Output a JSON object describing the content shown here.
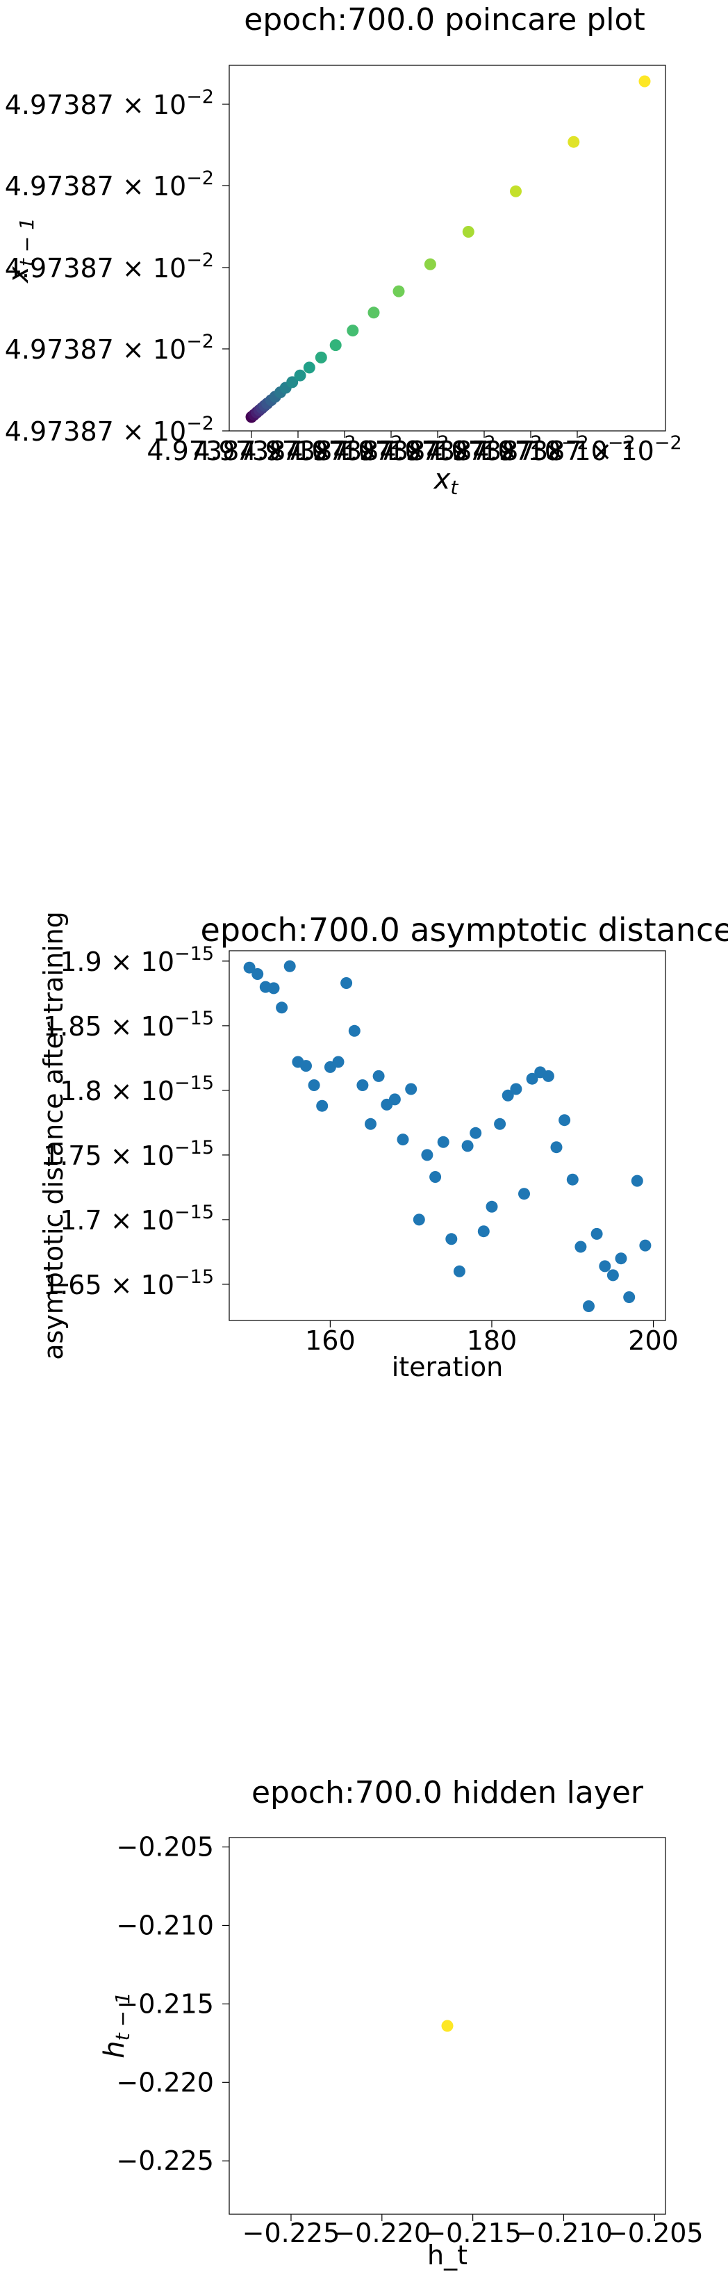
{
  "chart_data": [
    {
      "type": "scatter",
      "title": "epoch:700.0 poincare plot",
      "xlabel_base": "x",
      "xlabel_sub": "t",
      "ylabel_base": "x",
      "ylabel_sub": "t − 1",
      "ytick_labels": [
        "4.97387 × 10",
        "4.97387 × 10",
        "4.97387 × 10",
        "4.97387 × 10",
        "4.97387 × 10"
      ],
      "ytick_exp": "−2",
      "xtick_labels": [
        "4.97387 × 10",
        "4.97387 × 10",
        "4.97387 × 10",
        "4.97387 × 10",
        "4.97387 × 10",
        "4.97387 × 10",
        "4.97387 × 10",
        "4.97387 × 10"
      ],
      "xtick_exp": "−2",
      "colormap": "viridis",
      "x": [
        0.049738701,
        0.049738703,
        0.049738705,
        0.049738707,
        0.049738709,
        0.049738711,
        0.049738713,
        0.049738716,
        0.049738719,
        0.049738723,
        0.049738727,
        0.049738732,
        0.049738738,
        0.049738745,
        0.049738754,
        0.049738765,
        0.049738778,
        0.049738794,
        0.049738813,
        0.049738837,
        0.049738866,
        0.049738902,
        0.049738946,
        0.049739
      ],
      "y": [
        0.049738701,
        0.049738703,
        0.049738705,
        0.049738707,
        0.049738709,
        0.049738711,
        0.049738713,
        0.049738716,
        0.049738719,
        0.049738723,
        0.049738727,
        0.049738732,
        0.049738738,
        0.049738745,
        0.049738754,
        0.049738765,
        0.049738778,
        0.049738794,
        0.049738813,
        0.049738837,
        0.049738866,
        0.049738902,
        0.049738946,
        0.049739
      ]
    },
    {
      "type": "scatter",
      "title": "epoch:700.0 asymptotic distance",
      "xlabel": "iteration",
      "ylabel": "asymptotic distance after training",
      "color": "#1f77b4",
      "xticks": [
        160,
        180,
        200
      ],
      "yticks": [
        1.65,
        1.7,
        1.75,
        1.8,
        1.85,
        1.9
      ],
      "ytick_labels": [
        "1.65 × 10",
        "1.7 × 10",
        "1.75 × 10",
        "1.8 × 10",
        "1.85 × 10",
        "1.9 × 10"
      ],
      "ytick_exp": "−15",
      "xlim": [
        147.5,
        201.5
      ],
      "ylim": [
        1.622,
        1.908
      ],
      "x": [
        150,
        151,
        152,
        153,
        154,
        155,
        156,
        157,
        158,
        159,
        160,
        161,
        162,
        163,
        164,
        165,
        166,
        167,
        168,
        169,
        170,
        171,
        172,
        173,
        174,
        175,
        176,
        177,
        178,
        179,
        180,
        181,
        182,
        183,
        184,
        185,
        186,
        187,
        188,
        189,
        190,
        191,
        192,
        193,
        194,
        195,
        196,
        197,
        198,
        199
      ],
      "y": [
        1.895,
        1.89,
        1.88,
        1.879,
        1.864,
        1.896,
        1.822,
        1.819,
        1.804,
        1.788,
        1.818,
        1.822,
        1.883,
        1.846,
        1.804,
        1.774,
        1.811,
        1.789,
        1.793,
        1.762,
        1.801,
        1.7,
        1.75,
        1.733,
        1.76,
        1.685,
        1.66,
        1.757,
        1.767,
        1.691,
        1.71,
        1.774,
        1.796,
        1.801,
        1.72,
        1.809,
        1.814,
        1.811,
        1.756,
        1.777,
        1.731,
        1.679,
        1.633,
        1.689,
        1.664,
        1.657,
        1.67,
        1.64,
        1.73,
        1.68
      ]
    },
    {
      "type": "scatter",
      "title": "epoch:700.0 hidden layer",
      "xlabel": "h_t",
      "ylabel_base": "h",
      "ylabel_sub": "t − 1",
      "color": "#fde725",
      "xticks": [
        -0.225,
        -0.22,
        -0.215,
        -0.21,
        -0.205
      ],
      "xtick_labels": [
        "−0.225",
        "−0.220",
        "−0.215",
        "−0.210",
        "−0.205"
      ],
      "yticks": [
        -0.205,
        -0.21,
        -0.215,
        -0.22,
        -0.225
      ],
      "ytick_labels": [
        "−0.205",
        "−0.210",
        "−0.215",
        "−0.220",
        "−0.225"
      ],
      "xlim": [
        -0.2284,
        -0.2044
      ],
      "ylim": [
        -0.2284,
        -0.2044
      ],
      "x": [
        -0.2164
      ],
      "y": [
        -0.2164
      ]
    }
  ]
}
